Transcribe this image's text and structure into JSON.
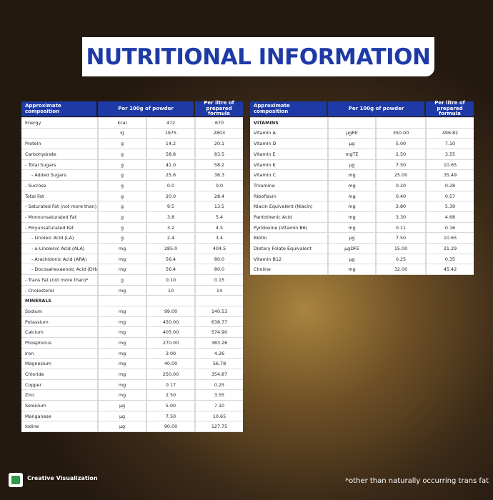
{
  "title": "NUTRITIONAL INFORMATION",
  "left_table": {
    "headers": [
      "Approximate composition",
      "Per 100g of powder",
      "Per litre of prepared formula"
    ],
    "rows": [
      [
        "Energy",
        "kcal",
        "472",
        "670"
      ],
      [
        null,
        "kJ",
        "1975",
        "2803"
      ],
      [
        "Protein",
        "g",
        "14.2",
        "20.1"
      ],
      [
        "Carbohydrate",
        "g",
        "58.8",
        "83.5"
      ],
      [
        "- Total Sugars",
        "g",
        "41.0",
        "58.2"
      ],
      [
        "- Added Sugars",
        "g",
        "25.6",
        "36.3"
      ],
      [
        "- Sucrose",
        "g",
        "0.0",
        "0.0"
      ],
      [
        "Total Fat",
        "g",
        "20.0",
        "28.4"
      ],
      [
        "- Saturated Fat (not more than)",
        "g",
        "9.5",
        "13.5"
      ],
      [
        "- Monounsaturated Fat",
        "g",
        "3.8",
        "5.4"
      ],
      [
        "- Polyunsaturated Fat",
        "g",
        "3.2",
        "4.5"
      ],
      [
        "- Linoleic Acid (LA)",
        "g",
        "2.4",
        "3.4"
      ],
      [
        "- α-Linolenic Acid (ALA)",
        "mg",
        "285.0",
        "404.5"
      ],
      [
        "- Arachidonic Acid (ARA)",
        "mg",
        "56.4",
        "80.0"
      ],
      [
        "- Docosahexaenoic Acid (DHA)",
        "mg",
        "56.4",
        "80.0"
      ],
      [
        "- Trans Fat (not more than)*",
        "g",
        "0.10",
        "0.15"
      ],
      [
        "- Cholesterol",
        "mg",
        "10",
        "14"
      ],
      [
        "MINERALS",
        null,
        null,
        null
      ],
      [
        "Sodium",
        "mg",
        "99.00",
        "140.53"
      ],
      [
        "Potassium",
        "mg",
        "450.00",
        "638.77"
      ],
      [
        "Calcium",
        "mg",
        "405.00",
        "574.90"
      ],
      [
        "Phosphorus",
        "mg",
        "270.00",
        "383.26"
      ],
      [
        "Iron",
        "mg",
        "3.00",
        "4.26"
      ],
      [
        "Magnesium",
        "mg",
        "40.00",
        "56.78"
      ],
      [
        "Chloride",
        "mg",
        "250.00",
        "354.87"
      ],
      [
        "Copper",
        "mg",
        "0.17",
        "0.25"
      ],
      [
        "Zinc",
        "mg",
        "2.50",
        "3.55"
      ],
      [
        "Selenium",
        "µg",
        "5.00",
        "7.10"
      ],
      [
        "Manganese",
        "µg",
        "7.50",
        "10.65"
      ],
      [
        "Iodine",
        "µg",
        "90.00",
        "127.75"
      ]
    ]
  },
  "right_table": {
    "headers": [
      "Approximate composition",
      "Per 100g of powder",
      "Per litre of prepared formula"
    ],
    "rows": [
      [
        "VITAMINS",
        null,
        null,
        null
      ],
      [
        "Vitamin A",
        "µgRE",
        "350.00",
        "496.82"
      ],
      [
        "Vitamin D",
        "µg",
        "5.00",
        "7.10"
      ],
      [
        "Vitamin E",
        "mgTE",
        "2.50",
        "3.55"
      ],
      [
        "Vitamin K",
        "µg",
        "7.50",
        "10.65"
      ],
      [
        "Vitamin C",
        "mg",
        "25.00",
        "35.49"
      ],
      [
        "Thiamine",
        "mg",
        "0.20",
        "0.28"
      ],
      [
        "Riboflavin",
        "mg",
        "0.40",
        "0.57"
      ],
      [
        "Niacin Equivalent (Niacin)",
        "mg",
        "3.80",
        "5.39"
      ],
      [
        "Pantothenic Acid",
        "mg",
        "3.30",
        "4.68"
      ],
      [
        "Pyridoxine (Vitamin B6)",
        "mg",
        "0.11",
        "0.16"
      ],
      [
        "Biotin",
        "µg",
        "7.50",
        "10.65"
      ],
      [
        "Dietary Folate Equivalent",
        "µgDFE",
        "15.00",
        "21.29"
      ],
      [
        "Vitamin B12",
        "µg",
        "0.25",
        "0.35"
      ],
      [
        "Choline",
        "mg",
        "32.00",
        "45.42"
      ]
    ]
  },
  "footer": {
    "badge": "Creative Visualization",
    "note": "*other than naturally occurring trans fat"
  }
}
